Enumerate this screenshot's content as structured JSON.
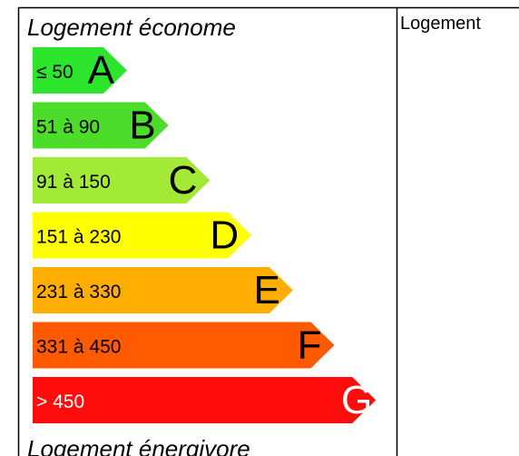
{
  "header": {
    "title": "Logement économe"
  },
  "bands": [
    {
      "range": "≤ 50",
      "letter": "A",
      "color": "#2ee52e"
    },
    {
      "range": "51 à 90",
      "letter": "B",
      "color": "#4cdc2a"
    },
    {
      "range": "91 à 150",
      "letter": "C",
      "color": "#a3ea36"
    },
    {
      "range": "151 à 230",
      "letter": "D",
      "color": "#ffff00"
    },
    {
      "range": "231 à 330",
      "letter": "E",
      "color": "#ffae00"
    },
    {
      "range": "331 à 450",
      "letter": "F",
      "color": "#ff5a00"
    },
    {
      "range": "> 450",
      "letter": "G",
      "color": "#ff0d0d"
    }
  ],
  "footer": {
    "title": "Logement énergivore"
  },
  "side": {
    "title": "Logement"
  }
}
